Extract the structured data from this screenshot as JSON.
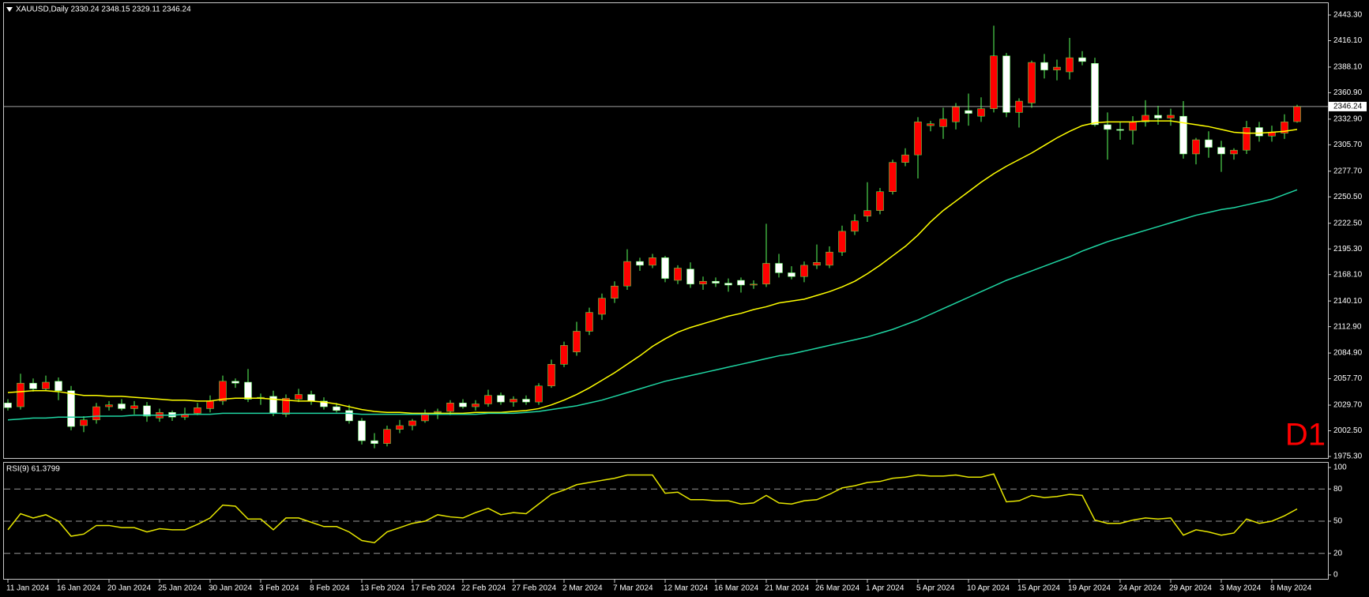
{
  "chart_data": [
    {
      "type": "candlestick",
      "title": "XAUUSD,Daily  2330.24 2348.15 2329.11 2346.24",
      "annotation": "D1",
      "categories": [
        "11 Jan 2024",
        null,
        null,
        null,
        "16 Jan 2024",
        null,
        null,
        null,
        "20 Jan 2024",
        null,
        null,
        null,
        "25 Jan 2024",
        null,
        null,
        null,
        "30 Jan 2024",
        null,
        null,
        null,
        "3 Feb 2024",
        null,
        null,
        null,
        "8 Feb 2024",
        null,
        null,
        null,
        "13 Feb 2024",
        null,
        null,
        null,
        "17 Feb 2024",
        null,
        null,
        null,
        "22 Feb 2024",
        null,
        null,
        null,
        "27 Feb 2024",
        null,
        null,
        null,
        "2 Mar 2024",
        null,
        null,
        null,
        "7 Mar 2024",
        null,
        null,
        null,
        "12 Mar 2024",
        null,
        null,
        null,
        "16 Mar 2024",
        null,
        null,
        null,
        "21 Mar 2024",
        null,
        null,
        null,
        "26 Mar 2024",
        null,
        null,
        null,
        "1 Apr 2024",
        null,
        null,
        null,
        "5 Apr 2024",
        null,
        null,
        null,
        "10 Apr 2024",
        null,
        null,
        null,
        "15 Apr 2024",
        null,
        null,
        null,
        "19 Apr 2024",
        null,
        null,
        null,
        "24 Apr 2024",
        null,
        null,
        null,
        "29 Apr 2024",
        null,
        null,
        null,
        "3 May 2024",
        null,
        null,
        null,
        "8 May 2024",
        null,
        null
      ],
      "open": [
        2032,
        2028,
        2053,
        2047,
        2055,
        2045,
        2008,
        2014,
        2028,
        2031,
        2026,
        2029,
        2016,
        2022,
        2017,
        2021,
        2026,
        2034,
        2055,
        2054,
        2037,
        2039,
        2020,
        2036,
        2041,
        2034,
        2028,
        2024,
        2013,
        1992,
        1989,
        2004,
        2008,
        2013,
        2022,
        2023,
        2032,
        2028,
        2031,
        2040,
        2033,
        2036,
        2033,
        2050,
        2073,
        2086,
        2108,
        2126,
        2143,
        2156,
        2182,
        2178,
        2186,
        2162,
        2174,
        2158,
        2161,
        2159,
        2162,
        2157,
        2158,
        2180,
        2170,
        2166,
        2178,
        2178,
        2192,
        2214,
        2230,
        2236,
        2256,
        2287,
        2295,
        2326,
        2325,
        2330,
        2342,
        2336,
        2344,
        2400,
        2340,
        2350,
        2393,
        2385,
        2383,
        2398,
        2392,
        2327,
        2322,
        2321,
        2330,
        2337,
        2334,
        2336,
        2296,
        2311,
        2303,
        2296,
        2300,
        2324,
        2315,
        2318,
        2330.24
      ],
      "high": [
        2036,
        2063,
        2058,
        2061,
        2059,
        2050,
        2018,
        2032,
        2034,
        2036,
        2034,
        2033,
        2026,
        2024,
        2027,
        2032,
        2040,
        2061,
        2058,
        2068,
        2042,
        2045,
        2041,
        2047,
        2045,
        2038,
        2032,
        2030,
        2016,
        2000,
        2008,
        2014,
        2015,
        2025,
        2026,
        2035,
        2036,
        2035,
        2046,
        2043,
        2039,
        2040,
        2053,
        2078,
        2097,
        2118,
        2133,
        2148,
        2161,
        2195,
        2186,
        2190,
        2188,
        2178,
        2181,
        2166,
        2165,
        2164,
        2165,
        2162,
        2222,
        2190,
        2177,
        2182,
        2200,
        2198,
        2220,
        2232,
        2266,
        2260,
        2290,
        2302,
        2335,
        2331,
        2345,
        2350,
        2360,
        2356,
        2432,
        2403,
        2355,
        2395,
        2402,
        2396,
        2419,
        2405,
        2398,
        2340,
        2330,
        2336,
        2353,
        2347,
        2344,
        2352,
        2313,
        2320,
        2310,
        2302,
        2331,
        2330,
        2326,
        2338,
        2348.15
      ],
      "low": [
        2024,
        2025,
        2044,
        2045,
        2035,
        2003,
        2001,
        2010,
        2024,
        2024,
        2020,
        2012,
        2012,
        2013,
        2014,
        2019,
        2022,
        2030,
        2048,
        2033,
        2030,
        2018,
        2017,
        2033,
        2030,
        2025,
        2022,
        2010,
        1988,
        1984,
        1986,
        2000,
        2003,
        2011,
        2015,
        2019,
        2026,
        2024,
        2028,
        2030,
        2028,
        2030,
        2030,
        2048,
        2070,
        2082,
        2104,
        2120,
        2138,
        2152,
        2172,
        2175,
        2160,
        2158,
        2154,
        2152,
        2155,
        2150,
        2149,
        2153,
        2155,
        2165,
        2163,
        2160,
        2174,
        2175,
        2188,
        2210,
        2224,
        2232,
        2253,
        2283,
        2270,
        2320,
        2312,
        2322,
        2326,
        2330,
        2340,
        2335,
        2324,
        2345,
        2376,
        2374,
        2375,
        2390,
        2325,
        2290,
        2311,
        2306,
        2325,
        2327,
        2326,
        2291,
        2285,
        2292,
        2277,
        2290,
        2296,
        2309,
        2309,
        2312,
        2329.11
      ],
      "close": [
        2027,
        2053,
        2047,
        2054,
        2045,
        2007,
        2014,
        2028,
        2030,
        2026,
        2029,
        2018,
        2022,
        2017,
        2020,
        2027,
        2034,
        2055,
        2053,
        2036,
        2038,
        2021,
        2037,
        2041,
        2034,
        2028,
        2024,
        2013,
        1992,
        1989,
        2004,
        2008,
        2013,
        2021,
        2023,
        2032,
        2028,
        2031,
        2040,
        2033,
        2036,
        2033,
        2050,
        2073,
        2093,
        2108,
        2128,
        2143,
        2156,
        2182,
        2178,
        2186,
        2164,
        2175,
        2158,
        2161,
        2159,
        2157,
        2157,
        2158,
        2180,
        2170,
        2166,
        2178,
        2181,
        2192,
        2214,
        2225,
        2236,
        2256,
        2287,
        2295,
        2330,
        2328,
        2333,
        2346,
        2339,
        2344,
        2400,
        2340,
        2352,
        2393,
        2385,
        2388,
        2398,
        2394,
        2327,
        2322,
        2321,
        2330,
        2337,
        2334,
        2337,
        2296,
        2311,
        2303,
        2296,
        2300,
        2324,
        2315,
        2319,
        2330,
        2346.24
      ],
      "series": [
        {
          "color": "#ffff00",
          "values": [
            2043,
            2044,
            2045,
            2045,
            2044,
            2042,
            2040,
            2040,
            2039,
            2039,
            2038,
            2037,
            2036,
            2035,
            2035,
            2034,
            2034,
            2036,
            2037,
            2037,
            2037,
            2036,
            2035,
            2034,
            2034,
            2033,
            2031,
            2028,
            2025,
            2023,
            2022,
            2022,
            2021,
            2021,
            2021,
            2021,
            2021,
            2022,
            2022,
            2022,
            2023,
            2024,
            2026,
            2030,
            2035,
            2041,
            2048,
            2056,
            2064,
            2073,
            2082,
            2092,
            2100,
            2107,
            2112,
            2116,
            2120,
            2124,
            2127,
            2131,
            2134,
            2138,
            2140,
            2142,
            2146,
            2150,
            2155,
            2161,
            2169,
            2178,
            2188,
            2198,
            2210,
            2224,
            2236,
            2246,
            2256,
            2266,
            2275,
            2283,
            2290,
            2297,
            2305,
            2313,
            2320,
            2326,
            2329,
            2330,
            2330,
            2330,
            2331,
            2331,
            2331,
            2329,
            2327,
            2325,
            2322,
            2319,
            2318,
            2318,
            2319,
            2320,
            2322
          ]
        },
        {
          "color": "#1fd6a3",
          "values": [
            2014,
            2015,
            2016,
            2016,
            2017,
            2017,
            2017,
            2018,
            2018,
            2018,
            2019,
            2019,
            2019,
            2019,
            2020,
            2020,
            2020,
            2021,
            2021,
            2021,
            2021,
            2021,
            2021,
            2021,
            2021,
            2021,
            2021,
            2021,
            2020,
            2020,
            2020,
            2020,
            2020,
            2020,
            2020,
            2020,
            2020,
            2020,
            2021,
            2021,
            2021,
            2022,
            2023,
            2025,
            2027,
            2029,
            2032,
            2035,
            2039,
            2043,
            2047,
            2051,
            2055,
            2058,
            2061,
            2064,
            2067,
            2070,
            2073,
            2076,
            2079,
            2082,
            2084,
            2087,
            2090,
            2093,
            2096,
            2099,
            2102,
            2106,
            2110,
            2115,
            2120,
            2126,
            2132,
            2138,
            2144,
            2150,
            2156,
            2162,
            2167,
            2172,
            2177,
            2182,
            2187,
            2193,
            2198,
            2203,
            2207,
            2211,
            2215,
            2219,
            2223,
            2227,
            2231,
            2234,
            2237,
            2239,
            2242,
            2245,
            2248,
            2253,
            2258
          ]
        }
      ],
      "up_color": "#ff0000",
      "down_color": "#ffffff",
      "wick_color": "#5cff5c",
      "current_price": 2346.24,
      "ylim": [
        1975.3,
        2443.3
      ],
      "yticks": [
        {
          "value": 1975.3,
          "label": "1975.30"
        },
        {
          "value": 2002.5,
          "label": "2002.50"
        },
        {
          "value": 2029.7,
          "label": "2029.70"
        },
        {
          "value": 2057.7,
          "label": "2057.70"
        },
        {
          "value": 2084.9,
          "label": "2084.90"
        },
        {
          "value": 2112.9,
          "label": "2112.90"
        },
        {
          "value": 2140.1,
          "label": "2140.10"
        },
        {
          "value": 2168.1,
          "label": "2168.10"
        },
        {
          "value": 2195.3,
          "label": "2195.30"
        },
        {
          "value": 2222.5,
          "label": "2222.50"
        },
        {
          "value": 2250.5,
          "label": "2250.50"
        },
        {
          "value": 2277.7,
          "label": "2277.70"
        },
        {
          "value": 2305.7,
          "label": "2305.70"
        },
        {
          "value": 2332.9,
          "label": "2332.90"
        },
        {
          "value": 2360.9,
          "label": "2360.90"
        },
        {
          "value": 2388.1,
          "label": "2388.10"
        },
        {
          "value": 2416.1,
          "label": "2416.10"
        },
        {
          "value": 2443.3,
          "label": "2443.30"
        }
      ]
    },
    {
      "type": "line",
      "title": "RSI(9) 61.3799",
      "color": "#e6e600",
      "values": [
        42,
        57,
        53,
        56,
        50,
        36,
        38,
        46,
        46,
        44,
        44,
        40,
        43,
        42,
        42,
        47,
        53,
        65,
        64,
        52,
        52,
        42,
        53,
        53,
        49,
        45,
        45,
        40,
        32,
        30,
        40,
        44,
        48,
        50,
        56,
        54,
        53,
        58,
        62,
        56,
        58,
        57,
        66,
        75,
        79,
        84,
        86,
        88,
        90,
        93,
        93,
        93,
        76,
        77,
        70,
        70,
        69,
        69,
        66,
        67,
        74,
        67,
        66,
        69,
        70,
        75,
        81,
        83,
        86,
        87,
        90,
        91,
        93,
        92,
        92,
        93,
        91,
        91,
        94,
        68,
        69,
        74,
        72,
        73,
        75,
        74,
        51,
        48,
        48,
        51,
        53,
        52,
        53,
        37,
        42,
        40,
        37,
        39,
        52,
        48,
        50,
        55,
        61.3799
      ],
      "ylim": [
        0,
        100
      ],
      "yticks": [
        0,
        20,
        50,
        80,
        100
      ],
      "dashed_levels": true
    }
  ]
}
